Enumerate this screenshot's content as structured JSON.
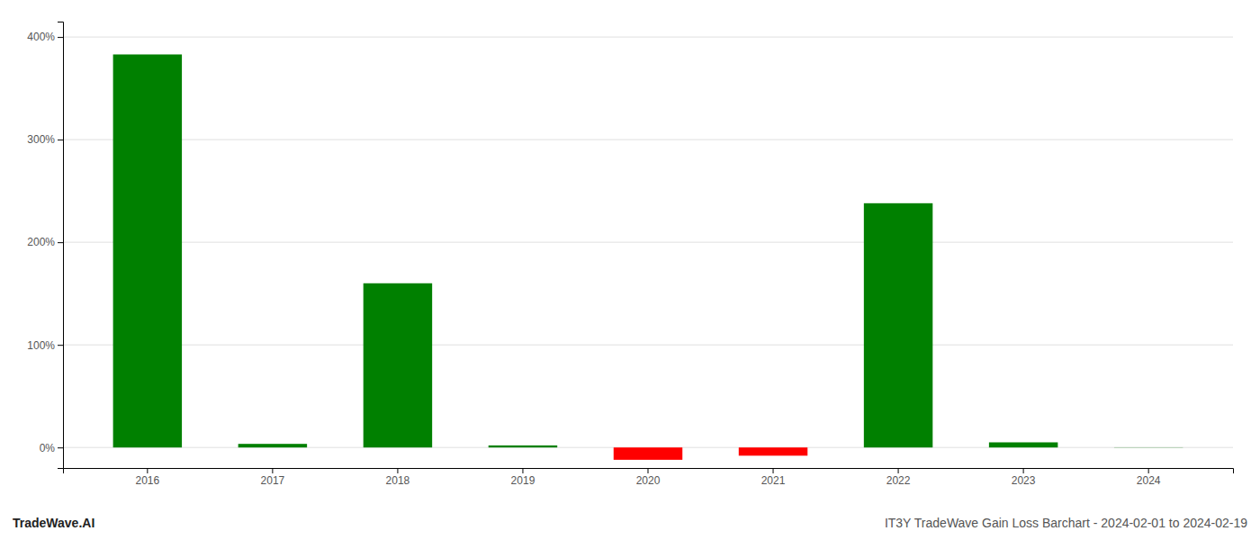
{
  "chart_data": {
    "type": "bar",
    "title": "IT3Y TradeWave Gain Loss Barchart - 2024-02-01 to 2024-02-19",
    "annotations": [
      "TradeWave.AI"
    ],
    "categories": [
      "2016",
      "2017",
      "2018",
      "2019",
      "2020",
      "2021",
      "2022",
      "2023",
      "2024"
    ],
    "values": [
      383.0,
      3.5,
      160.0,
      2.0,
      -12.0,
      -8.0,
      238.0,
      5.0,
      0.2
    ],
    "colors": [
      "#008000",
      "#008000",
      "#008000",
      "#008000",
      "#ff0000",
      "#ff0000",
      "#008000",
      "#008000",
      "#008000"
    ],
    "ylim": [
      -20,
      415
    ],
    "yticks": [
      {
        "value": 0,
        "label": "0%"
      },
      {
        "value": 100,
        "label": "100%"
      },
      {
        "value": 200,
        "label": "200%"
      },
      {
        "value": 300,
        "label": "300%"
      },
      {
        "value": 400,
        "label": "400%"
      }
    ],
    "grid": true
  }
}
